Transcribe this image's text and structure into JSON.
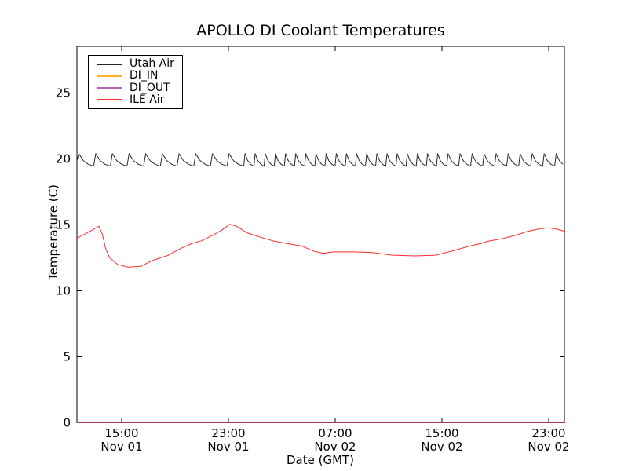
{
  "chart_data": {
    "type": "line",
    "title": "APOLLO DI Coolant Temperatures",
    "xlabel": "Date (GMT)",
    "ylabel": "Temperature (C)",
    "x_unit": "hours since Nov 01 00:00 GMT",
    "xlim_hours": [
      11.65,
      48.24
    ],
    "ylim": [
      0,
      28.5
    ],
    "grid": false,
    "legend_position": "upper left",
    "y_ticks": [
      0,
      5,
      10,
      15,
      20,
      25
    ],
    "x_ticks": [
      {
        "hour": 15,
        "time": "15:00",
        "date": "Nov 01"
      },
      {
        "hour": 23,
        "time": "23:00",
        "date": "Nov 01"
      },
      {
        "hour": 31,
        "time": "07:00",
        "date": "Nov 02"
      },
      {
        "hour": 39,
        "time": "15:00",
        "date": "Nov 02"
      },
      {
        "hour": 47,
        "time": "23:00",
        "date": "Nov 02"
      }
    ],
    "series": [
      {
        "name": "Utah Air",
        "color": "#000000",
        "opacity": 0.85,
        "pattern": "sawtooth oscillation between ~19.5 and ~20.4 C",
        "sawtooth": {
          "base": 19.45,
          "peak": 20.4,
          "start": 11.65,
          "end": 48.24,
          "regions": [
            {
              "until": 23.5,
              "period": 1.25
            },
            {
              "until": 38.8,
              "period": 0.76
            },
            {
              "until": 48.24,
              "period": 0.9
            }
          ]
        }
      },
      {
        "name": "DI_IN",
        "color": "#ffa500",
        "opacity": 0.85,
        "points": [
          [
            11.65,
            0
          ],
          [
            48.24,
            0
          ]
        ]
      },
      {
        "name": "DI_OUT",
        "color": "#800080",
        "opacity": 0.6,
        "points": [
          [
            11.65,
            0
          ],
          [
            48.24,
            0
          ]
        ]
      },
      {
        "name": "ILE Air",
        "color": "#ff2222",
        "opacity": 0.95,
        "points": [
          [
            11.65,
            14.0
          ],
          [
            12.6,
            14.5
          ],
          [
            13.3,
            14.9
          ],
          [
            13.55,
            14.3
          ],
          [
            13.8,
            13.2
          ],
          [
            14.1,
            12.5
          ],
          [
            14.7,
            12.0
          ],
          [
            15.5,
            11.8
          ],
          [
            16.4,
            11.85
          ],
          [
            17.3,
            12.3
          ],
          [
            18.5,
            12.7
          ],
          [
            19.4,
            13.2
          ],
          [
            20.3,
            13.6
          ],
          [
            21.0,
            13.8
          ],
          [
            21.8,
            14.2
          ],
          [
            22.5,
            14.6
          ],
          [
            23.1,
            15.05
          ],
          [
            23.6,
            14.9
          ],
          [
            24.4,
            14.4
          ],
          [
            25.3,
            14.1
          ],
          [
            26.3,
            13.8
          ],
          [
            27.3,
            13.6
          ],
          [
            28.5,
            13.4
          ],
          [
            29.4,
            13.0
          ],
          [
            30.1,
            12.85
          ],
          [
            30.9,
            12.95
          ],
          [
            32.3,
            12.95
          ],
          [
            33.8,
            12.9
          ],
          [
            35.3,
            12.7
          ],
          [
            37.0,
            12.65
          ],
          [
            38.5,
            12.7
          ],
          [
            39.7,
            13.0
          ],
          [
            41.1,
            13.4
          ],
          [
            42.0,
            13.6
          ],
          [
            42.4,
            13.75
          ],
          [
            43.5,
            13.95
          ],
          [
            44.5,
            14.2
          ],
          [
            45.4,
            14.5
          ],
          [
            46.3,
            14.7
          ],
          [
            47.0,
            14.78
          ],
          [
            47.5,
            14.7
          ],
          [
            48.24,
            14.5
          ]
        ]
      }
    ]
  }
}
